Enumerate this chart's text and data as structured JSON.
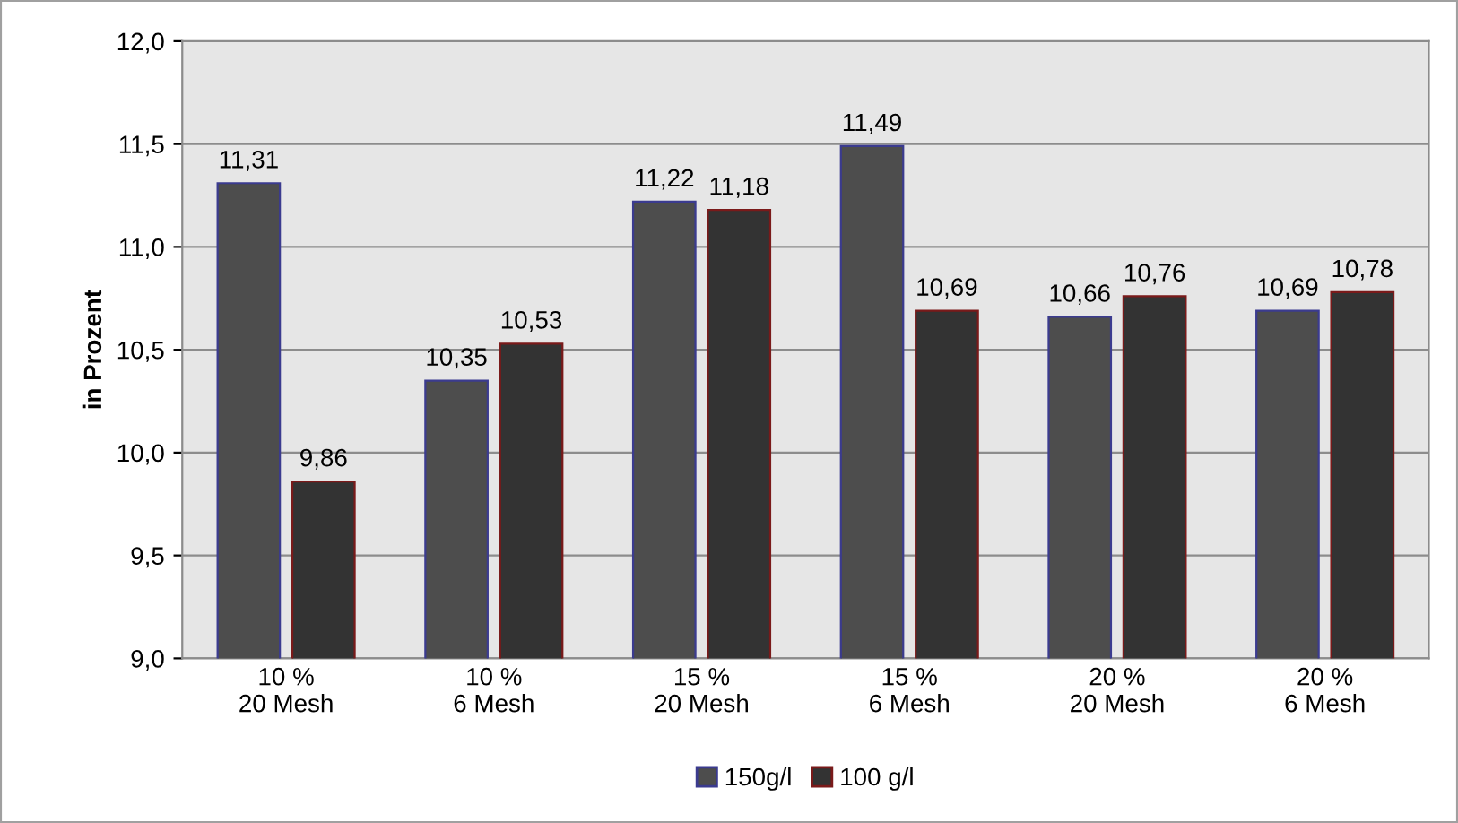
{
  "chart_data": {
    "type": "bar",
    "ylabel": "in Prozent",
    "categories": [
      "10 %\n20 Mesh",
      "10 %\n6 Mesh",
      "15 %\n20 Mesh",
      "15 %\n6 Mesh",
      "20 %\n20 Mesh",
      "20 %\n6 Mesh"
    ],
    "series": [
      {
        "name": "150g/l",
        "color": "#4d4d4d",
        "values": [
          11.31,
          10.35,
          11.22,
          11.49,
          10.66,
          10.69
        ],
        "value_labels": [
          "11,31",
          "10,35",
          "11,22",
          "11,49",
          "10,66",
          "10,69"
        ]
      },
      {
        "name": "100 g/l",
        "color": "#333333",
        "values": [
          9.86,
          10.53,
          11.18,
          10.69,
          10.76,
          10.78
        ],
        "value_labels": [
          "9,86",
          "10,53",
          "11,18",
          "10,69",
          "10,76",
          "10,78"
        ]
      }
    ],
    "ylim": [
      9.0,
      12.0
    ],
    "yticks": [
      {
        "value": 9.0,
        "label": "9,0"
      },
      {
        "value": 9.5,
        "label": "9,5"
      },
      {
        "value": 10.0,
        "label": "10,0"
      },
      {
        "value": 10.5,
        "label": "10,5"
      },
      {
        "value": 11.0,
        "label": "11,0"
      },
      {
        "value": 11.5,
        "label": "11,5"
      },
      {
        "value": 12.0,
        "label": "12,0"
      }
    ],
    "grid": "y",
    "legend": "bottom"
  }
}
